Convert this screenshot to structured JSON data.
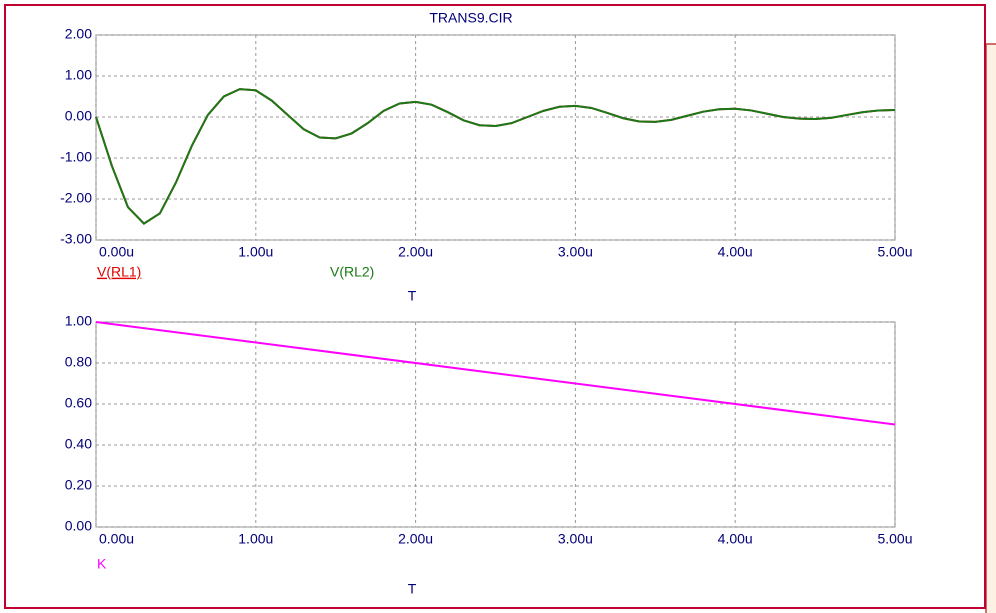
{
  "chart_data": [
    {
      "type": "line",
      "title": "TRANS9.CIR",
      "x_label": "T",
      "x": [
        0,
        0.1,
        0.2,
        0.3,
        0.4,
        0.5,
        0.6,
        0.7,
        0.8,
        0.9,
        1.0,
        1.1,
        1.2,
        1.3,
        1.4,
        1.5,
        1.6,
        1.7,
        1.8,
        1.9,
        2.0,
        2.1,
        2.2,
        2.3,
        2.4,
        2.5,
        2.6,
        2.7,
        2.8,
        2.9,
        3.0,
        3.1,
        3.2,
        3.3,
        3.4,
        3.5,
        3.6,
        3.7,
        3.8,
        3.9,
        4.0,
        4.1,
        4.2,
        4.3,
        4.4,
        4.5,
        4.6,
        4.7,
        4.8,
        4.9,
        5.0
      ],
      "series": [
        {
          "name": "V(RL1)",
          "color": "#e00000",
          "values": [
            0,
            -1.2,
            -2.2,
            -2.6,
            -2.35,
            -1.6,
            -0.7,
            0.05,
            0.5,
            0.68,
            0.65,
            0.4,
            0.05,
            -0.3,
            -0.5,
            -0.52,
            -0.4,
            -0.15,
            0.15,
            0.33,
            0.37,
            0.3,
            0.12,
            -0.08,
            -0.2,
            -0.22,
            -0.15,
            0.0,
            0.15,
            0.25,
            0.27,
            0.22,
            0.1,
            -0.03,
            -0.11,
            -0.12,
            -0.07,
            0.03,
            0.13,
            0.19,
            0.2,
            0.16,
            0.08,
            0.0,
            -0.04,
            -0.05,
            -0.02,
            0.05,
            0.12,
            0.16,
            0.17
          ]
        },
        {
          "name": "V(RL2)",
          "color": "#1a7a1a",
          "values": [
            0,
            -1.2,
            -2.2,
            -2.6,
            -2.35,
            -1.6,
            -0.7,
            0.05,
            0.5,
            0.68,
            0.65,
            0.4,
            0.05,
            -0.3,
            -0.5,
            -0.52,
            -0.4,
            -0.15,
            0.15,
            0.33,
            0.37,
            0.3,
            0.12,
            -0.08,
            -0.2,
            -0.22,
            -0.15,
            0.0,
            0.15,
            0.25,
            0.27,
            0.22,
            0.1,
            -0.03,
            -0.11,
            -0.12,
            -0.07,
            0.03,
            0.13,
            0.19,
            0.2,
            0.16,
            0.08,
            0.0,
            -0.04,
            -0.05,
            -0.02,
            0.05,
            0.12,
            0.16,
            0.17
          ]
        }
      ],
      "xlim": [
        0,
        5
      ],
      "xticks": [
        {
          "value": 0,
          "label": "0.00u"
        },
        {
          "value": 1,
          "label": "1.00u"
        },
        {
          "value": 2,
          "label": "2.00u"
        },
        {
          "value": 3,
          "label": "3.00u"
        },
        {
          "value": 4,
          "label": "4.00u"
        },
        {
          "value": 5,
          "label": "5.00u"
        }
      ],
      "ylim": [
        -3,
        2
      ],
      "yticks": [
        {
          "value": -3,
          "label": "-3.00"
        },
        {
          "value": -2,
          "label": "-2.00"
        },
        {
          "value": -1,
          "label": "-1.00"
        },
        {
          "value": 0,
          "label": "0.00"
        },
        {
          "value": 1,
          "label": "1.00"
        },
        {
          "value": 2,
          "label": "2.00"
        }
      ],
      "grid": true
    },
    {
      "type": "line",
      "x_label": "T",
      "x": [
        0,
        5
      ],
      "series": [
        {
          "name": "K",
          "color": "#ff00ff",
          "values": [
            1,
            0.5
          ]
        }
      ],
      "xlim": [
        0,
        5
      ],
      "xticks": [
        {
          "value": 0,
          "label": "0.00u"
        },
        {
          "value": 1,
          "label": "1.00u"
        },
        {
          "value": 2,
          "label": "2.00u"
        },
        {
          "value": 3,
          "label": "3.00u"
        },
        {
          "value": 4,
          "label": "4.00u"
        },
        {
          "value": 5,
          "label": "5.00u"
        }
      ],
      "ylim": [
        0,
        1
      ],
      "yticks": [
        {
          "value": 0,
          "label": "0.00"
        },
        {
          "value": 0.2,
          "label": "0.20"
        },
        {
          "value": 0.4,
          "label": "0.40"
        },
        {
          "value": 0.6,
          "label": "0.60"
        },
        {
          "value": 0.8,
          "label": "0.80"
        },
        {
          "value": 1,
          "label": "1.00"
        }
      ],
      "grid": true
    }
  ]
}
